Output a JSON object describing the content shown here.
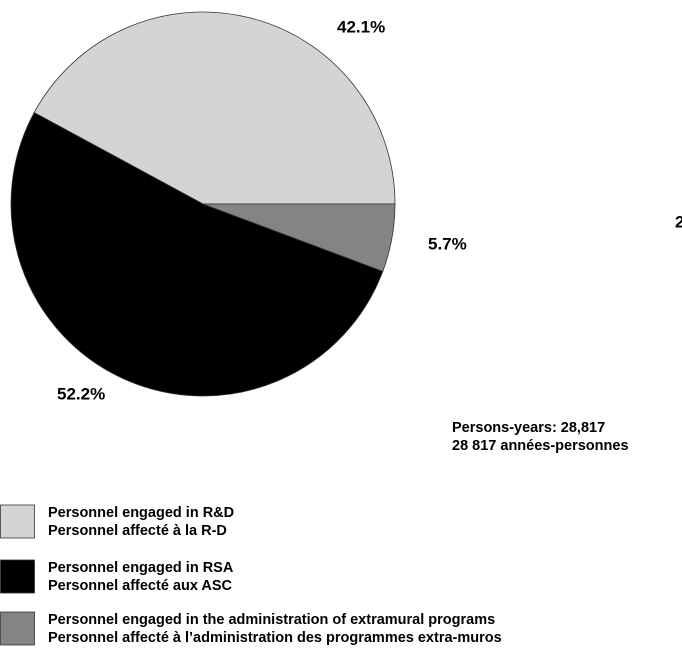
{
  "chart_data": {
    "type": "pie",
    "categories": [
      [
        "Personnel engaged in R&D",
        "Personnel affecté à la R-D"
      ],
      [
        "Personnel engaged in RSA",
        "Personnel affecté aux ASC"
      ],
      [
        "Personnel engaged in the administration of extramural programs",
        "Personnel affecté à l’administration des programmes extra-muros"
      ]
    ],
    "values": [
      42.1,
      52.2,
      5.7
    ],
    "value_labels": [
      "42.1%",
      "52.2%",
      "5.7%"
    ],
    "colors": [
      "#d4d4d4",
      "#000000",
      "#848484"
    ],
    "annotations": [
      "Persons-years: 28,817",
      "28 817 années-personnes",
      "2"
    ]
  }
}
